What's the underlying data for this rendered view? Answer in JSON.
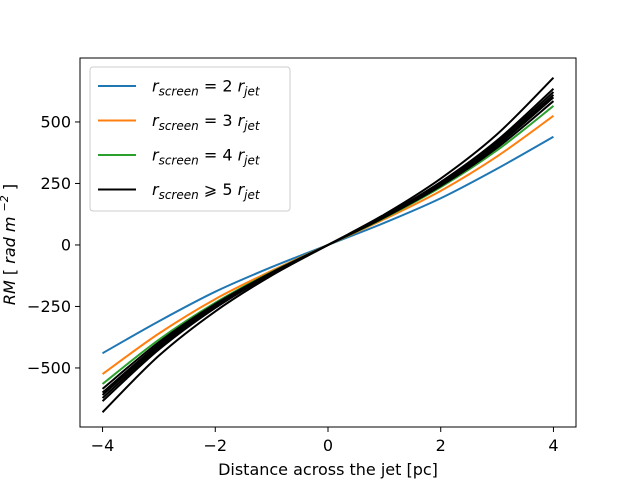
{
  "chart_data": {
    "type": "line",
    "title": "",
    "xlabel": "Distance across the jet [pc]",
    "ylabel": {
      "symbol": "RM",
      "unit_prefix": "rad m",
      "unit_exponent": "−2"
    },
    "xlim": [
      -4.4,
      4.4
    ],
    "ylim": [
      -740,
      760
    ],
    "xticks": [
      -4,
      -2,
      0,
      2,
      4
    ],
    "xtick_labels": [
      "−4",
      "−2",
      "0",
      "2",
      "4"
    ],
    "yticks": [
      -500,
      -250,
      0,
      250,
      500
    ],
    "ytick_labels": [
      "−500",
      "−250",
      "0",
      "250",
      "500"
    ],
    "grid": false,
    "legend_position": "top-left",
    "legend": [
      {
        "color": "#1f77b4",
        "symbol": "r",
        "sub": "screen",
        "relation": "= 2",
        "rhs_symbol": "r",
        "rhs_sub": "jet"
      },
      {
        "color": "#ff7f0e",
        "symbol": "r",
        "sub": "screen",
        "relation": "= 3",
        "rhs_symbol": "r",
        "rhs_sub": "jet"
      },
      {
        "color": "#2ca02c",
        "symbol": "r",
        "sub": "screen",
        "relation": "= 4",
        "rhs_symbol": "r",
        "rhs_sub": "jet"
      },
      {
        "color": "#000000",
        "symbol": "r",
        "sub": "screen",
        "relation": "⩾ 5",
        "rhs_symbol": "r",
        "rhs_sub": "jet"
      }
    ],
    "series": [
      {
        "name": "r_screen = 2 r_jet",
        "color": "#1f77b4",
        "x": [
          -4,
          -3,
          -2,
          -1,
          0,
          1,
          2,
          3,
          4
        ],
        "y": [
          -440,
          -310,
          -190,
          -90,
          0,
          90,
          190,
          310,
          440
        ]
      },
      {
        "name": "r_screen = 3 r_jet",
        "color": "#ff7f0e",
        "x": [
          -4,
          -3,
          -2,
          -1,
          0,
          1,
          2,
          3,
          4
        ],
        "y": [
          -525,
          -360,
          -220,
          -105,
          0,
          105,
          220,
          360,
          525
        ]
      },
      {
        "name": "r_screen = 4 r_jet",
        "color": "#2ca02c",
        "x": [
          -4,
          -3,
          -2,
          -1,
          0,
          1,
          2,
          3,
          4
        ],
        "y": [
          -565,
          -385,
          -235,
          -110,
          0,
          110,
          235,
          385,
          565
        ]
      },
      {
        "name": "r_screen ≥ 5 r_jet (a)",
        "color": "#000000",
        "x": [
          -4,
          -3,
          -2,
          -1,
          0,
          1,
          2,
          3,
          4
        ],
        "y": [
          -585,
          -395,
          -240,
          -112,
          0,
          112,
          240,
          395,
          585
        ]
      },
      {
        "name": "r_screen ≥ 5 r_jet (b)",
        "color": "#000000",
        "x": [
          -4,
          -3,
          -2,
          -1,
          0,
          1,
          2,
          3,
          4
        ],
        "y": [
          -600,
          -404,
          -245,
          -114,
          0,
          114,
          245,
          404,
          600
        ]
      },
      {
        "name": "r_screen ≥ 5 r_jet (c)",
        "color": "#000000",
        "x": [
          -4,
          -3,
          -2,
          -1,
          0,
          1,
          2,
          3,
          4
        ],
        "y": [
          -610,
          -410,
          -248,
          -116,
          0,
          116,
          248,
          410,
          610
        ]
      },
      {
        "name": "r_screen ≥ 5 r_jet (d)",
        "color": "#000000",
        "x": [
          -4,
          -3,
          -2,
          -1,
          0,
          1,
          2,
          3,
          4
        ],
        "y": [
          -622,
          -418,
          -252,
          -117,
          0,
          117,
          252,
          418,
          622
        ]
      },
      {
        "name": "r_screen ≥ 5 r_jet (e)",
        "color": "#000000",
        "x": [
          -4,
          -3,
          -2,
          -1,
          0,
          1,
          2,
          3,
          4
        ],
        "y": [
          -635,
          -425,
          -256,
          -118,
          0,
          118,
          256,
          425,
          635
        ]
      },
      {
        "name": "r_screen ≥ 5 r_jet (f)",
        "color": "#000000",
        "x": [
          -4,
          -3,
          -2,
          -1,
          0,
          1,
          2,
          3,
          4
        ],
        "y": [
          -680,
          -450,
          -270,
          -124,
          0,
          124,
          270,
          450,
          680
        ]
      }
    ]
  }
}
